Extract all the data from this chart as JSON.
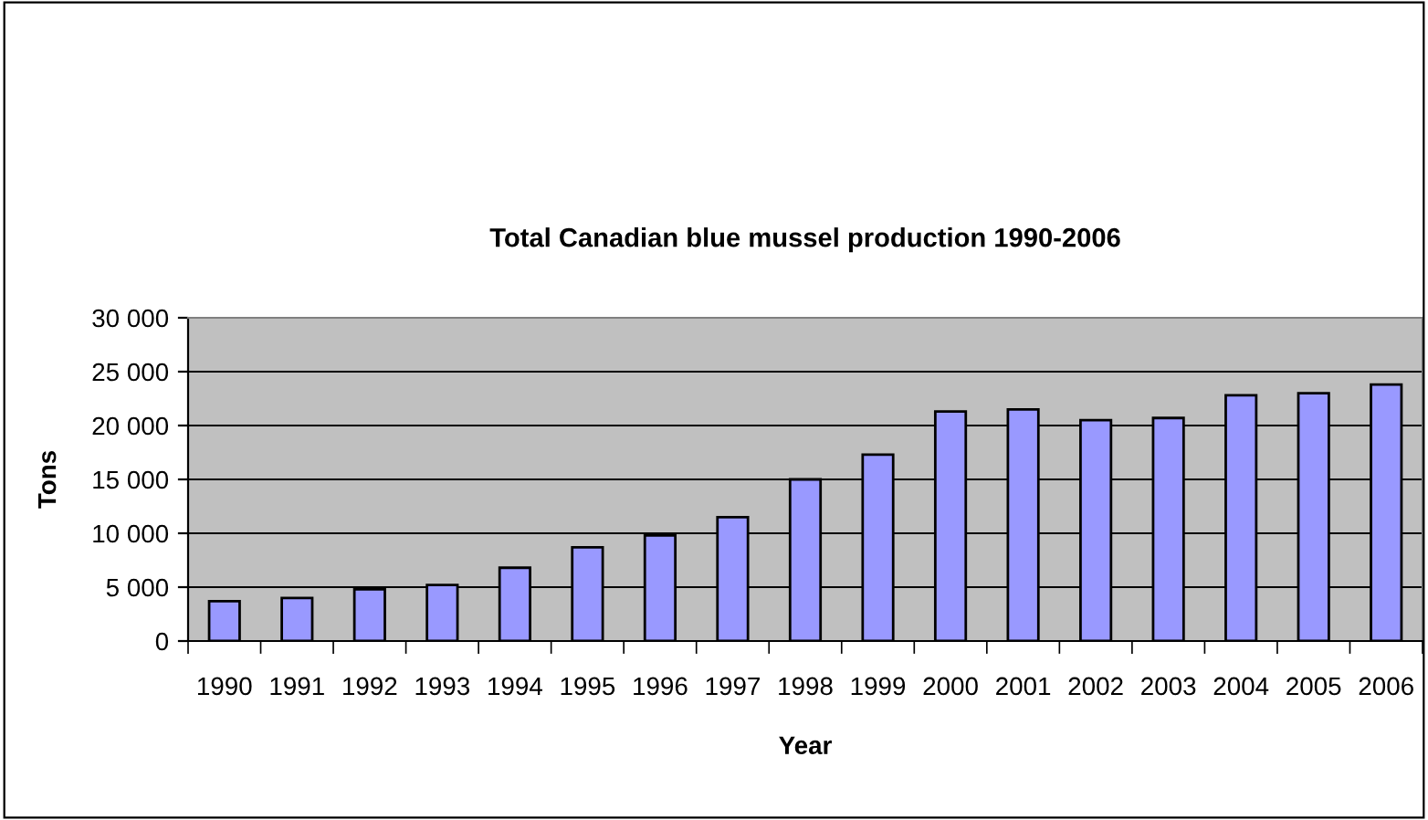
{
  "chart_data": {
    "type": "bar",
    "title": "Total Canadian blue mussel production 1990-2006",
    "xlabel": "Year",
    "ylabel": "Tons",
    "categories": [
      "1990",
      "1991",
      "1992",
      "1993",
      "1994",
      "1995",
      "1996",
      "1997",
      "1998",
      "1999",
      "2000",
      "2001",
      "2002",
      "2003",
      "2004",
      "2005",
      "2006"
    ],
    "values": [
      3700,
      4000,
      4800,
      5200,
      6800,
      8700,
      9800,
      11500,
      15000,
      17300,
      21300,
      21500,
      20500,
      20700,
      22800,
      23000,
      23800
    ],
    "color": "#9999ff",
    "ylim": [
      0,
      30000
    ],
    "yticks": [
      {
        "value": 0,
        "label": "0"
      },
      {
        "value": 5000,
        "label": "5 000"
      },
      {
        "value": 10000,
        "label": "10 000"
      },
      {
        "value": 15000,
        "label": "15 000"
      },
      {
        "value": 20000,
        "label": "20 000"
      },
      {
        "value": 25000,
        "label": "25 000"
      },
      {
        "value": 30000,
        "label": "30 000"
      }
    ],
    "grid": "y",
    "legend": false
  }
}
